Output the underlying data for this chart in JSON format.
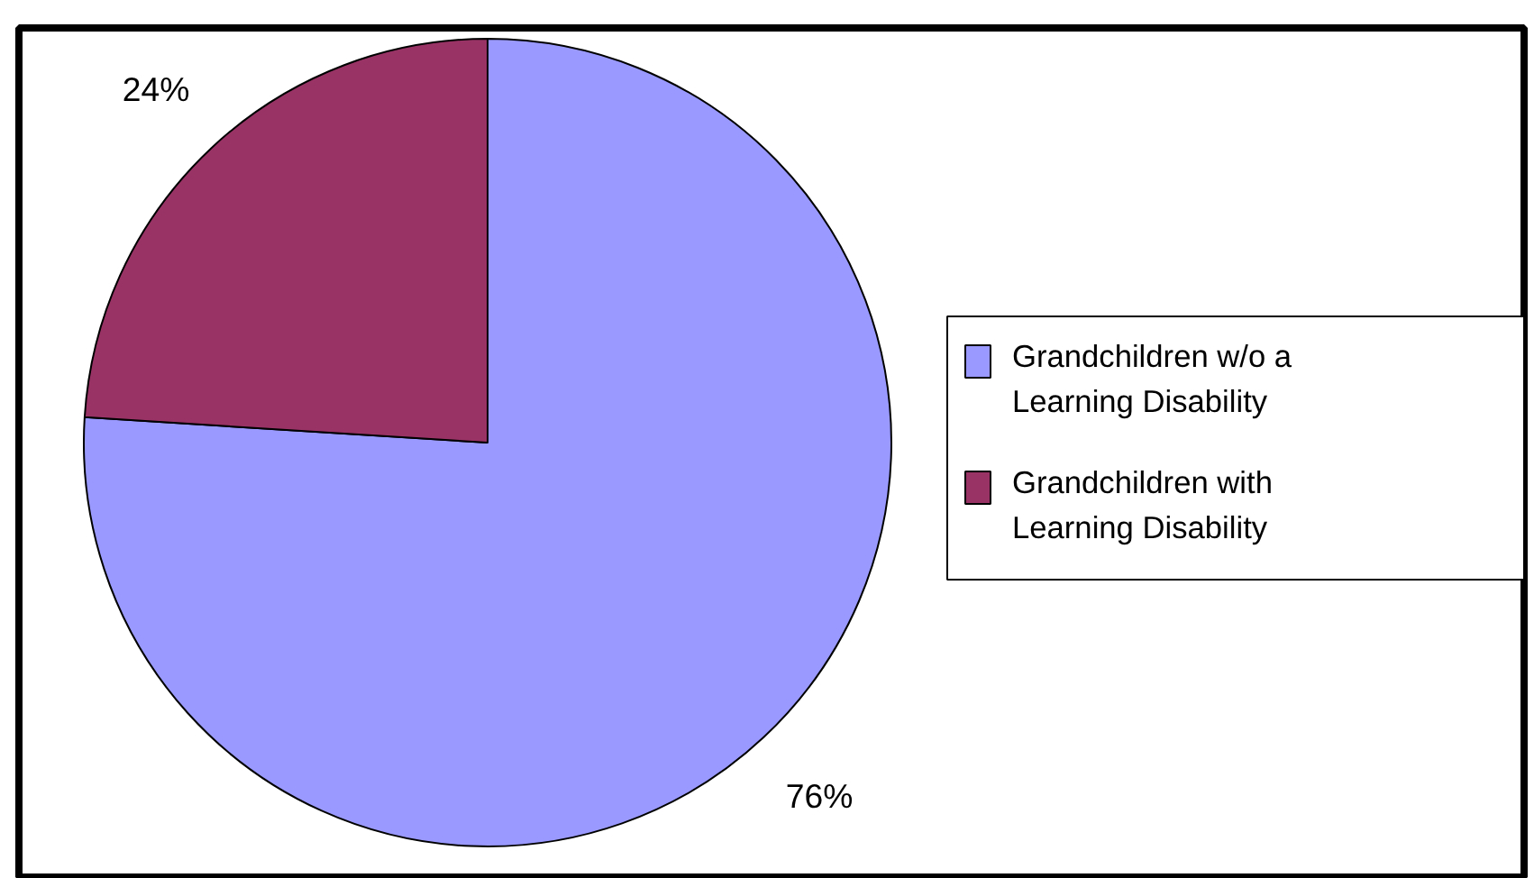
{
  "chart_data": {
    "type": "pie",
    "categories": [
      "Grandchildren w/o a Learning Disability",
      "Grandchildren with Learning Disability"
    ],
    "values": [
      76,
      24
    ],
    "colors": [
      "#9999ff",
      "#993366"
    ],
    "value_labels": [
      "76%",
      "24%"
    ],
    "legend": "right"
  }
}
